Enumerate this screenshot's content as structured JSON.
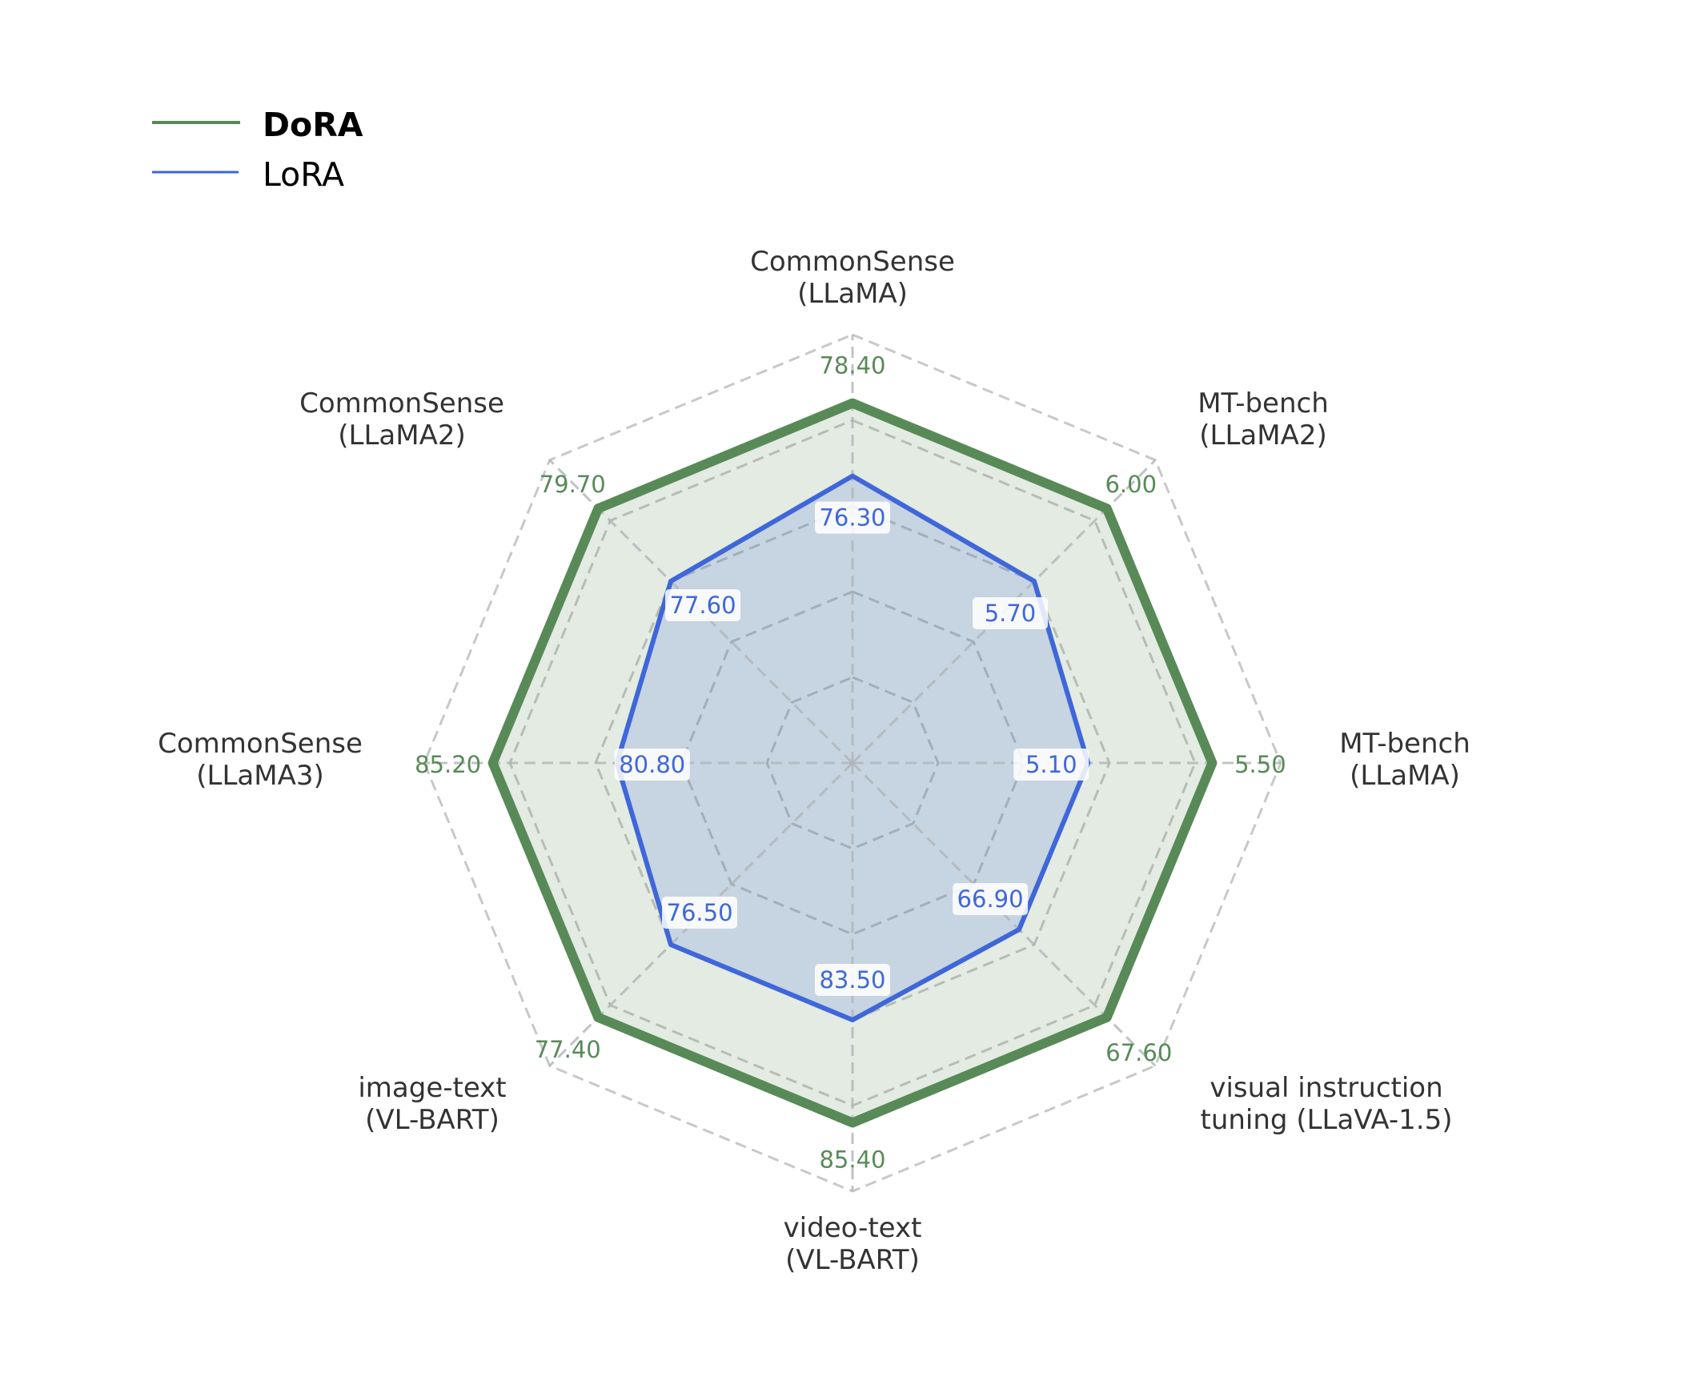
{
  "chart_data": {
    "type": "radar",
    "title": "",
    "axes": [
      {
        "label_line1": "CommonSense",
        "label_line2": "(LLaMA)"
      },
      {
        "label_line1": "MT-bench",
        "label_line2": "(LLaMA2)"
      },
      {
        "label_line1": "MT-bench",
        "label_line2": "(LLaMA)"
      },
      {
        "label_line1": "visual instruction",
        "label_line2": "tuning (LLaVA-1.5)"
      },
      {
        "label_line1": "video-text",
        "label_line2": "(VL-BART)"
      },
      {
        "label_line1": "image-text",
        "label_line2": "(VL-BART)"
      },
      {
        "label_line1": "CommonSense",
        "label_line2": "(LLaMA3)"
      },
      {
        "label_line1": "CommonSense",
        "label_line2": "(LLaMA2)"
      }
    ],
    "categories": [
      "CommonSense (LLaMA)",
      "MT-bench (LLaMA2)",
      "MT-bench (LLaMA)",
      "visual instruction tuning (LLaVA-1.5)",
      "video-text (VL-BART)",
      "image-text (VL-BART)",
      "CommonSense (LLaMA3)",
      "CommonSense (LLaMA2)"
    ],
    "series": [
      {
        "name": "DoRA",
        "color": "#588a57",
        "values": [
          78.4,
          6.0,
          5.5,
          67.6,
          85.4,
          77.4,
          85.2,
          79.7
        ],
        "labels": [
          "78.40",
          "6.00",
          "5.50",
          "67.60",
          "85.40",
          "77.40",
          "85.20",
          "79.70"
        ]
      },
      {
        "name": "LoRA",
        "color": "#3f67d9",
        "values": [
          76.3,
          5.7,
          5.1,
          66.9,
          83.5,
          76.5,
          80.8,
          77.6
        ],
        "labels": [
          "76.30",
          "5.70",
          "5.10",
          "66.90",
          "83.50",
          "76.50",
          "80.80",
          "77.60"
        ]
      }
    ],
    "legend": {
      "position": "upper-left",
      "entries": [
        "DoRA",
        "LoRA"
      ]
    },
    "grid": true,
    "grid_rings": 5
  }
}
